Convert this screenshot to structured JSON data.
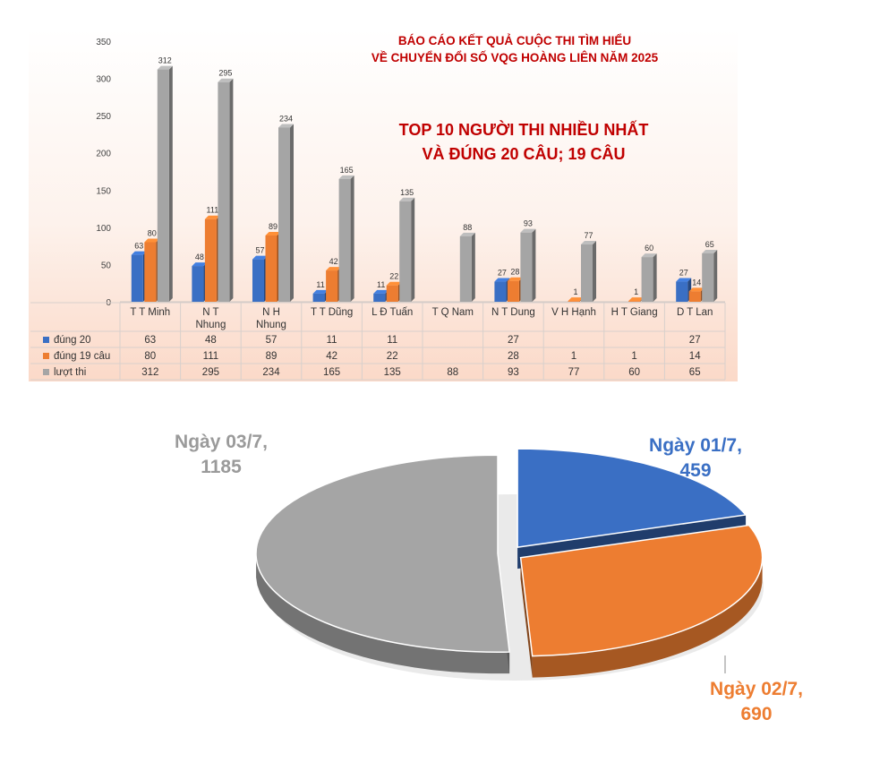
{
  "colors": {
    "blue": "#3a6fc4",
    "orange": "#ed7d31",
    "gray": "#a5a5a5",
    "title_red": "#c00000"
  },
  "chart_data": [
    {
      "type": "bar",
      "title": "BÁO CÁO KẾT QUẢ CUỘC THI TÌM HIỂU",
      "subtitle": "VỀ CHUYỂN ĐỔI SỐ VQG HOÀNG LIÊN NĂM 2025",
      "annotation": [
        "TOP 10 NGƯỜI THI NHIỀU NHẤT",
        "VÀ ĐÚNG 20 CÂU; 19 CÂU"
      ],
      "categories": [
        [
          "T T Minh"
        ],
        [
          "N T",
          "Nhung"
        ],
        [
          "N H",
          "Nhung"
        ],
        [
          "T T Dũng"
        ],
        [
          "L Đ Tuấn"
        ],
        [
          "T Q Nam"
        ],
        [
          "N T Dung"
        ],
        [
          "V H Hạnh"
        ],
        [
          "H T Giang"
        ],
        [
          "D T Lan"
        ]
      ],
      "series": [
        {
          "name": "đúng 20",
          "color": "#3a6fc4",
          "values": [
            63,
            48,
            57,
            11,
            11,
            null,
            27,
            null,
            null,
            27
          ]
        },
        {
          "name": "đúng 19 câu",
          "color": "#ed7d31",
          "values": [
            80,
            111,
            89,
            42,
            22,
            null,
            28,
            1,
            1,
            14
          ]
        },
        {
          "name": "lượt thi",
          "color": "#a5a5a5",
          "values": [
            312,
            295,
            234,
            165,
            135,
            88,
            93,
            77,
            60,
            65
          ]
        }
      ],
      "yticks": [
        0,
        50,
        100,
        150,
        200,
        250,
        300,
        350
      ],
      "ylim": [
        0,
        350
      ],
      "legend": "data-table"
    },
    {
      "type": "pie",
      "slices": [
        {
          "label": "Ngày 01/7,",
          "value": 459,
          "color": "#3a6fc4"
        },
        {
          "label": "Ngày 02/7,",
          "value": 690,
          "color": "#ed7d31"
        },
        {
          "label": "Ngày 03/7,",
          "value": 1185,
          "color": "#a5a5a5"
        }
      ]
    }
  ]
}
